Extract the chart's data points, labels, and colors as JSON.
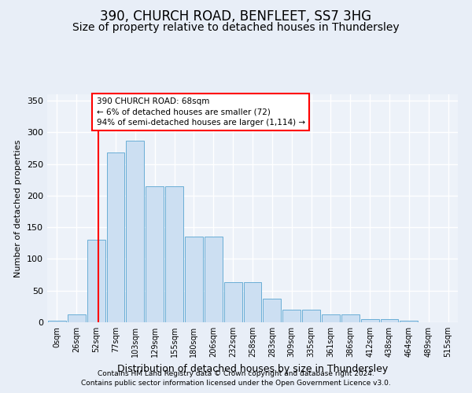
{
  "title": "390, CHURCH ROAD, BENFLEET, SS7 3HG",
  "subtitle": "Size of property relative to detached houses in Thundersley",
  "xlabel": "Distribution of detached houses by size in Thundersley",
  "ylabel": "Number of detached properties",
  "footnote1": "Contains HM Land Registry data © Crown copyright and database right 2024.",
  "footnote2": "Contains public sector information licensed under the Open Government Licence v3.0.",
  "bin_labels": [
    "0sqm",
    "26sqm",
    "52sqm",
    "77sqm",
    "103sqm",
    "129sqm",
    "155sqm",
    "180sqm",
    "206sqm",
    "232sqm",
    "258sqm",
    "283sqm",
    "309sqm",
    "335sqm",
    "361sqm",
    "386sqm",
    "412sqm",
    "438sqm",
    "464sqm",
    "489sqm",
    "515sqm"
  ],
  "bar_values": [
    2,
    13,
    130,
    268,
    287,
    215,
    215,
    135,
    135,
    63,
    63,
    37,
    20,
    20,
    12,
    12,
    5,
    5,
    2,
    0,
    0
  ],
  "bar_color": "#ccdff2",
  "bar_edge_color": "#6aaed6",
  "vline_color": "red",
  "annotation_text": "390 CHURCH ROAD: 68sqm\n← 6% of detached houses are smaller (72)\n94% of semi-detached houses are larger (1,114) →",
  "annotation_box_color": "white",
  "annotation_box_edge": "red",
  "ylim": [
    0,
    360
  ],
  "yticks": [
    0,
    50,
    100,
    150,
    200,
    250,
    300,
    350
  ],
  "background_color": "#e8eef7",
  "plot_background": "#edf2f9",
  "grid_color": "white",
  "title_fontsize": 12,
  "subtitle_fontsize": 10,
  "footnote_fontsize": 6.5
}
